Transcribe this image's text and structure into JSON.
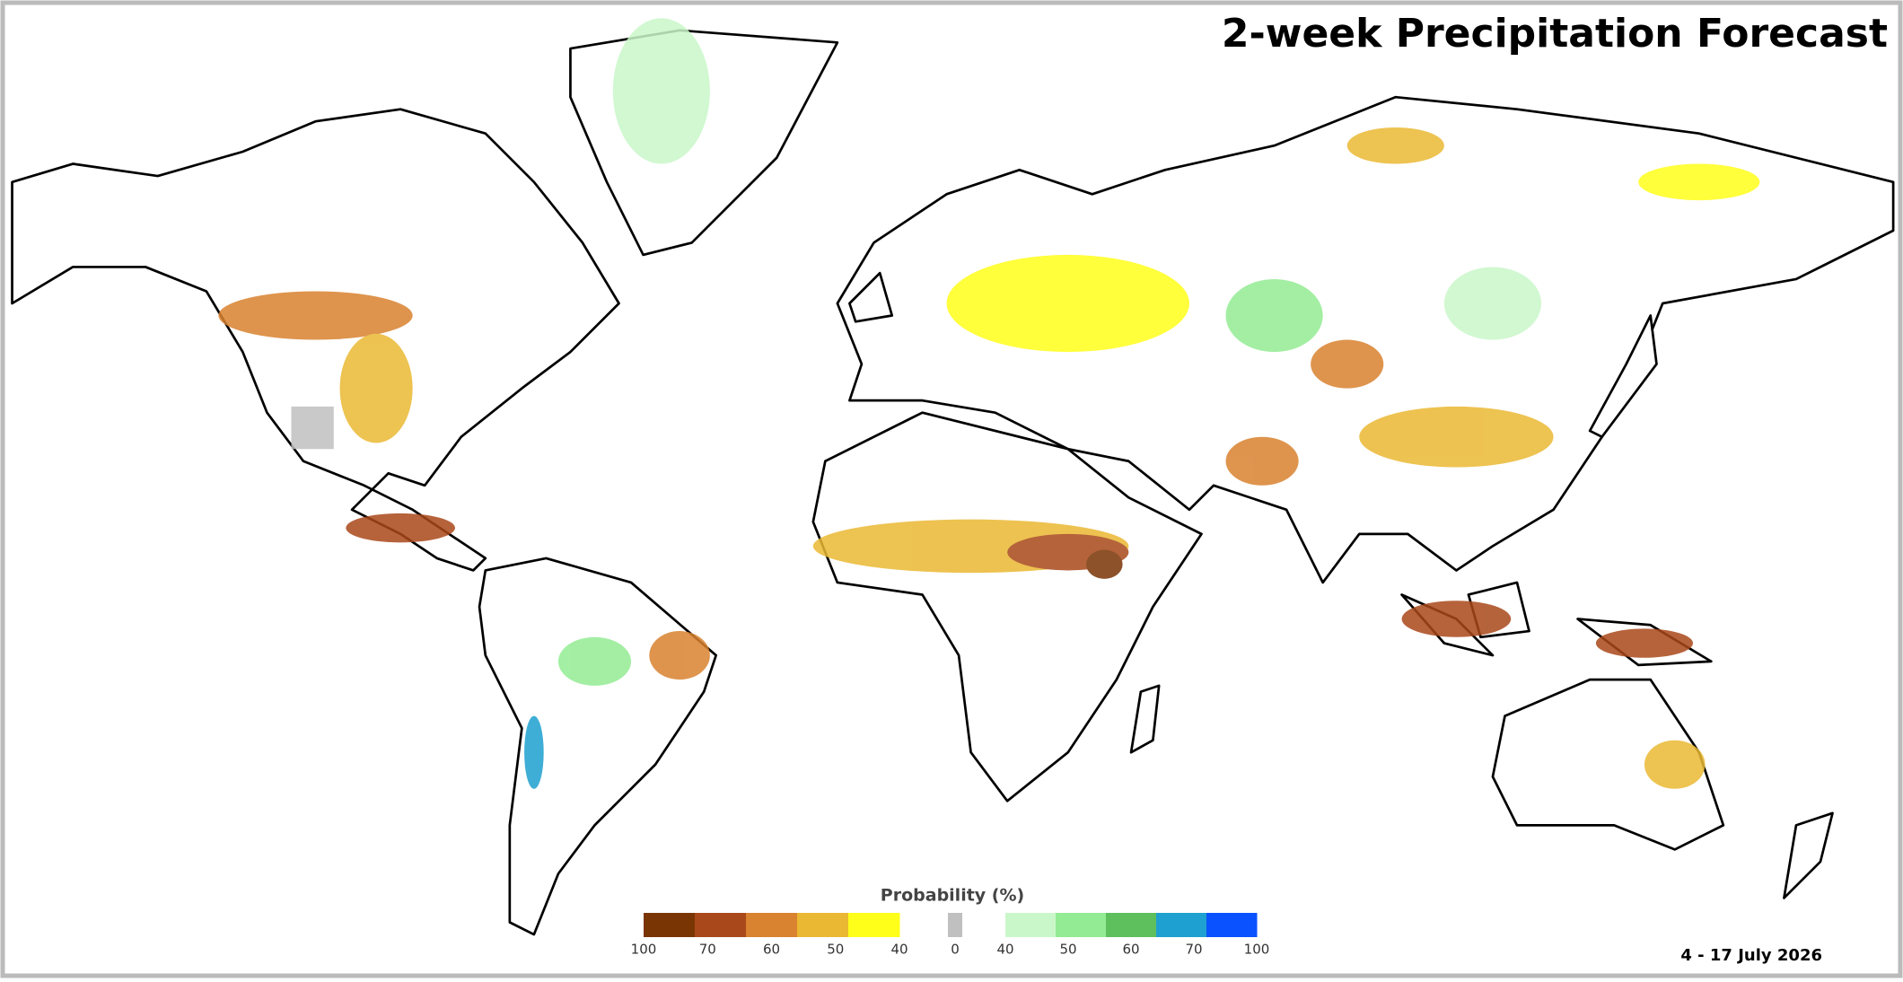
{
  "title": "2-week Precipitation Forecast",
  "date": "4 - 17 July 2026",
  "legend": {
    "title": "Probability (%)",
    "dry": {
      "colors": [
        "#7a3504",
        "#a9481a",
        "#d9822f",
        "#eab832",
        "#ffff1a"
      ],
      "ticks": [
        100,
        70,
        60,
        50,
        40
      ]
    },
    "neutral": {
      "color": "#c0c0c0",
      "tick": 0
    },
    "wet": {
      "colors": [
        "#c9f7c9",
        "#93ec93",
        "#5dc05d",
        "#1ea0d0",
        "#0a52ff"
      ],
      "ticks": [
        40,
        50,
        60,
        70,
        100
      ]
    }
  }
}
